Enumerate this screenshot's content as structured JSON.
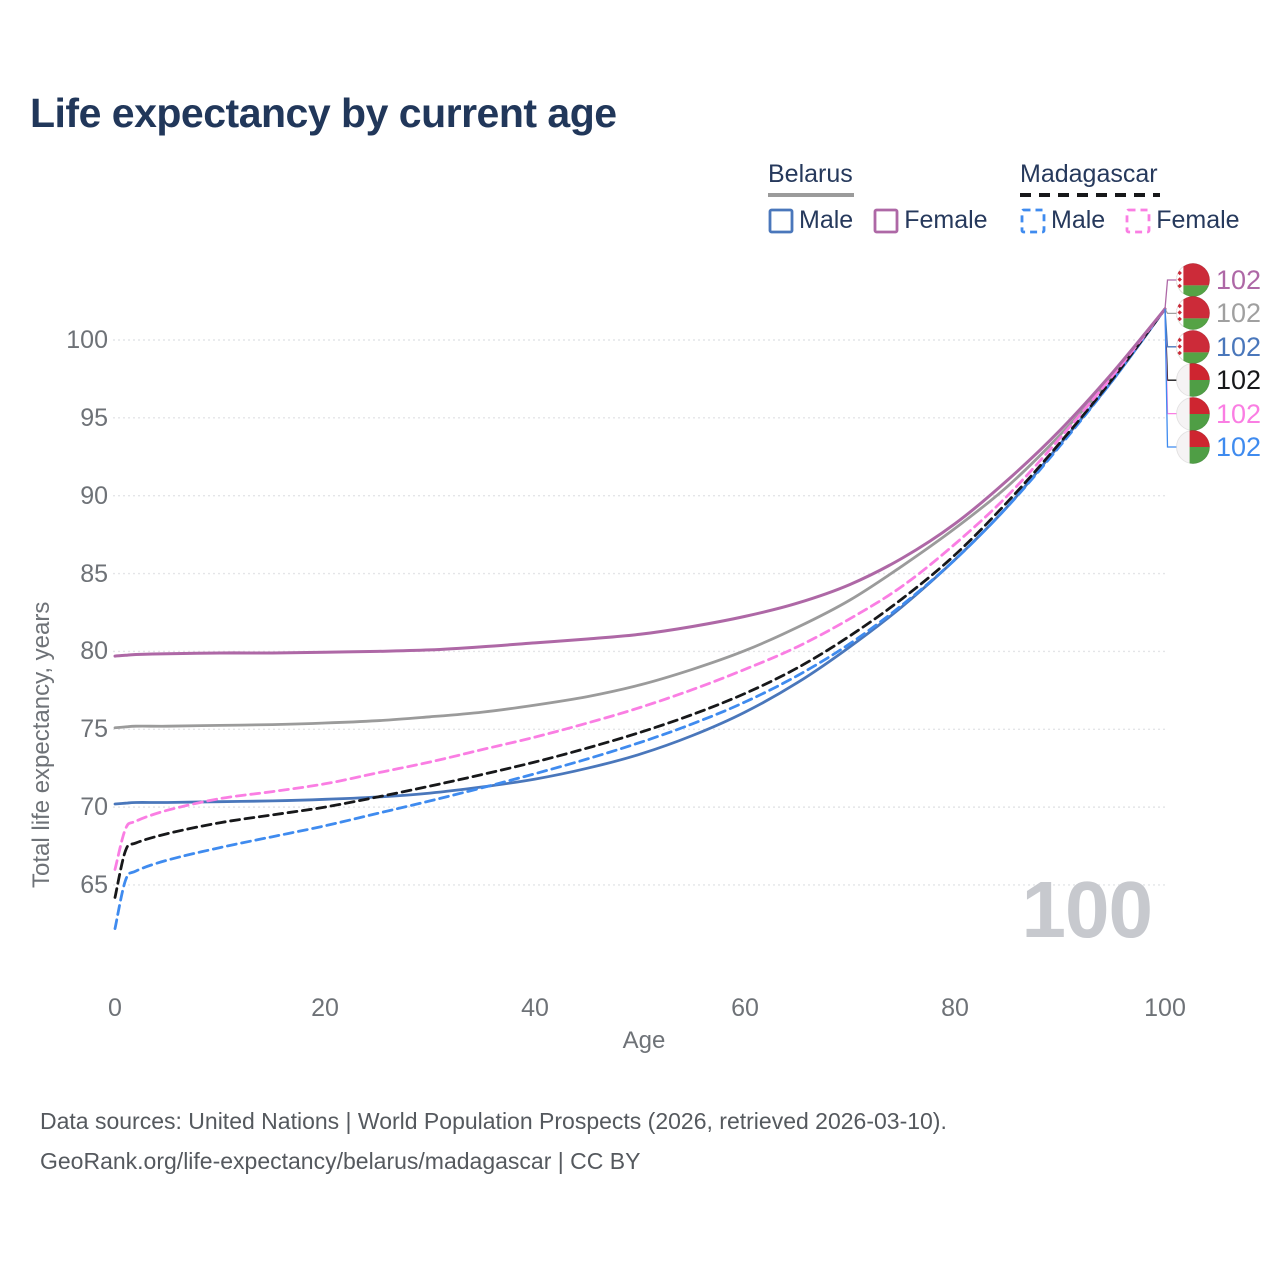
{
  "title": "Life expectancy by current age",
  "watermark": "100",
  "source": {
    "line1": "Data sources: United Nations | World Population Prospects (2026, retrieved 2026-03-10).",
    "line2": "GeoRank.org/life-expectancy/belarus/madagascar | CC BY"
  },
  "colors": {
    "title_text": "#21375a",
    "axis_text": "#6e7277",
    "grid": "#e4e5e8",
    "watermark": "#c7c9ce",
    "belarus_flag_red": "#cc2b39",
    "belarus_flag_green": "#55a345",
    "madagascar_flag_red": "#ce2530",
    "madagascar_flag_green": "#4f9e45",
    "madagascar_flag_white": "#f5f3f4"
  },
  "legend": {
    "groups": [
      {
        "country": "Belarus",
        "line_style": "solid",
        "line_color": "#9b9b9b",
        "items": [
          {
            "label": "Male",
            "color": "#4a77bb",
            "dashed": false
          },
          {
            "label": "Female",
            "color": "#ae68a6",
            "dashed": false
          }
        ]
      },
      {
        "country": "Madagascar",
        "line_style": "dashed",
        "line_color": "#17181a",
        "items": [
          {
            "label": "Male",
            "color": "#3f8bef",
            "dashed": true
          },
          {
            "label": "Female",
            "color": "#fa7ee3",
            "dashed": true
          }
        ]
      }
    ]
  },
  "chart_data": {
    "type": "line",
    "title": "Life expectancy by current age",
    "xlabel": "Age",
    "ylabel": "Total life expectancy, years",
    "x_ticks": [
      0,
      20,
      40,
      60,
      80,
      100
    ],
    "y_ticks": [
      65,
      70,
      75,
      80,
      85,
      90,
      95,
      100
    ],
    "xlim": [
      0,
      100
    ],
    "ylim": [
      62,
      103
    ],
    "grid": "horizontal-only",
    "legend_position": "top-right",
    "x": [
      0,
      1,
      2,
      5,
      10,
      15,
      20,
      25,
      30,
      35,
      40,
      45,
      50,
      55,
      60,
      65,
      70,
      75,
      80,
      85,
      90,
      95,
      100
    ],
    "series": [
      {
        "id": "belarus_total",
        "name": "Belarus",
        "country": "Belarus",
        "sex": "all",
        "color": "#9b9b9b",
        "dashed": false,
        "width": 2.8,
        "values": [
          75.1,
          75.15,
          75.2,
          75.2,
          75.25,
          75.3,
          75.4,
          75.55,
          75.8,
          76.1,
          76.55,
          77.1,
          77.85,
          78.85,
          80.05,
          81.55,
          83.3,
          85.5,
          87.9,
          90.6,
          93.9,
          97.7,
          102
        ]
      },
      {
        "id": "belarus_male",
        "name": "Belarus — Male",
        "country": "Belarus",
        "sex": "male",
        "color": "#4a77bb",
        "dashed": false,
        "width": 2.8,
        "values": [
          70.2,
          70.25,
          70.3,
          70.3,
          70.35,
          70.4,
          70.5,
          70.65,
          70.9,
          71.3,
          71.8,
          72.5,
          73.4,
          74.6,
          76.1,
          78,
          80.3,
          82.9,
          85.9,
          89.3,
          93.3,
          97.4,
          102
        ]
      },
      {
        "id": "madagascar_male",
        "name": "Madagascar — Male",
        "country": "Madagascar",
        "sex": "male",
        "color": "#3f8bef",
        "dashed": true,
        "width": 2.8,
        "values": [
          62.2,
          65.3,
          65.9,
          66.6,
          67.4,
          68.1,
          68.8,
          69.6,
          70.4,
          71.25,
          72.15,
          73.1,
          74.15,
          75.35,
          76.75,
          78.45,
          80.5,
          83,
          85.9,
          89.3,
          93.2,
          97.4,
          102
        ]
      },
      {
        "id": "madagascar_total",
        "name": "Madagascar",
        "country": "Madagascar",
        "sex": "all",
        "color": "#17181a",
        "dashed": true,
        "width": 2.8,
        "values": [
          64.2,
          67.2,
          67.7,
          68.3,
          69,
          69.5,
          70,
          70.65,
          71.35,
          72.1,
          72.9,
          73.8,
          74.8,
          75.95,
          77.3,
          78.95,
          81,
          83.4,
          86.2,
          89.6,
          93.4,
          97.5,
          102
        ]
      },
      {
        "id": "madagascar_female",
        "name": "Madagascar — Female",
        "country": "Madagascar",
        "sex": "female",
        "color": "#fa7ee3",
        "dashed": true,
        "width": 2.8,
        "values": [
          66,
          68.6,
          69.1,
          69.8,
          70.55,
          71,
          71.5,
          72.2,
          72.9,
          73.7,
          74.5,
          75.4,
          76.4,
          77.55,
          78.85,
          80.3,
          82.1,
          84.2,
          86.9,
          90,
          93.7,
          97.7,
          102
        ]
      },
      {
        "id": "belarus_female",
        "name": "Belarus — Female",
        "country": "Belarus",
        "sex": "female",
        "color": "#ae68a6",
        "dashed": false,
        "width": 3,
        "values": [
          79.7,
          79.75,
          79.8,
          79.85,
          79.9,
          79.9,
          79.95,
          80,
          80.1,
          80.3,
          80.55,
          80.8,
          81.1,
          81.6,
          82.25,
          83.1,
          84.3,
          86,
          88.2,
          91,
          94.2,
          97.9,
          102
        ]
      }
    ],
    "endpoints": [
      {
        "series": "belarus_female",
        "label": "102",
        "color": "#ae68a6",
        "flag": "belarus"
      },
      {
        "series": "belarus_total",
        "label": "102",
        "color": "#a0a0a0",
        "flag": "belarus"
      },
      {
        "series": "belarus_male",
        "label": "102",
        "color": "#4a77bb",
        "flag": "belarus"
      },
      {
        "series": "madagascar_total",
        "label": "102",
        "color": "#17181a",
        "flag": "madagascar"
      },
      {
        "series": "madagascar_female",
        "label": "102",
        "color": "#fa7ee3",
        "flag": "madagascar"
      },
      {
        "series": "madagascar_male",
        "label": "102",
        "color": "#3f8bef",
        "flag": "madagascar"
      }
    ]
  }
}
